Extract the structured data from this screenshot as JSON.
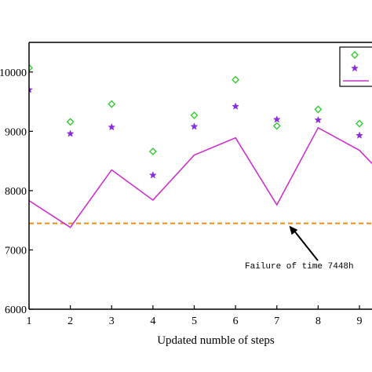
{
  "chart_data": {
    "type": "line",
    "xlabel": "Updated numble of steps",
    "ylabel": "",
    "xlim": [
      1,
      9.4
    ],
    "ylim": [
      6000,
      10500
    ],
    "x_ticks": [
      1,
      2,
      3,
      4,
      5,
      6,
      7,
      8,
      9
    ],
    "x_tick_labels": [
      "1",
      "2",
      "3",
      "4",
      "5",
      "6",
      "7",
      "8",
      "9"
    ],
    "y_ticks": [
      6000,
      7000,
      8000,
      9000,
      10000
    ],
    "y_tick_labels": [
      "6000",
      "7000",
      "8000",
      "9000",
      "10000"
    ],
    "grid": false,
    "legend_position": "top-right",
    "series": [
      {
        "type": "scatter",
        "marker": "diamond",
        "color": "#33cc33",
        "x": [
          1,
          2,
          3,
          4,
          5,
          6,
          7,
          8,
          9
        ],
        "values": [
          10070,
          9160,
          9460,
          8660,
          9270,
          9870,
          9090,
          9370,
          9130
        ]
      },
      {
        "type": "scatter",
        "marker": "star",
        "color": "#8a2be2",
        "x": [
          1,
          2,
          3,
          4,
          5,
          6,
          7,
          8,
          9
        ],
        "values": [
          9700,
          8960,
          9070,
          8260,
          9080,
          9420,
          9200,
          9190,
          8930
        ]
      },
      {
        "type": "line",
        "color": "#cc33cc",
        "x": [
          1,
          2,
          3,
          4,
          5,
          6,
          7,
          8,
          9,
          9.4
        ],
        "values": [
          7830,
          7380,
          8350,
          7840,
          8600,
          8890,
          7760,
          9060,
          8680,
          8390
        ]
      }
    ],
    "threshold": {
      "value": 7448,
      "color": "#ee8a1a",
      "style": "dashed"
    },
    "annotation": {
      "text": "Failure of time 7448h",
      "arrow_to": [
        7.3,
        7448
      ]
    }
  }
}
